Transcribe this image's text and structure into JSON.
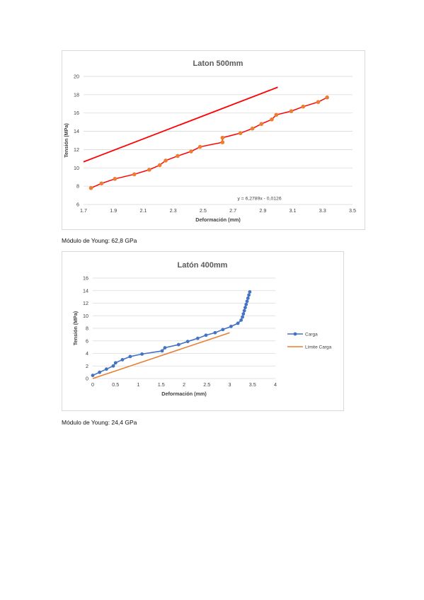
{
  "captions": {
    "chart1": "Módulo de Young: 62,8 GPa",
    "chart2": "Módulo de Young: 24,4 GPa"
  },
  "chart_data": [
    {
      "type": "scatter",
      "title": "Laton 500mm",
      "xlabel": "Deformación (mm)",
      "ylabel": "Tensión (MPa)",
      "xlim": [
        1.7,
        3.5
      ],
      "ylim": [
        6,
        20
      ],
      "xticks": [
        "1.7",
        "1.9",
        "2.1",
        "2.3",
        "2.5",
        "2.7",
        "2.9",
        "3.1",
        "3.3",
        "3.5"
      ],
      "yticks": [
        "6",
        "8",
        "10",
        "12",
        "14",
        "16",
        "18",
        "20"
      ],
      "grid": "horizontal",
      "trendline_label": "y = 6,2789x - 0,0126",
      "colors": {
        "points": "#ED7D31",
        "fit": "#FF0000",
        "grid": "#D9D9D9"
      },
      "series": [
        {
          "x": [
            1.75,
            1.82,
            1.91,
            2.04,
            2.14,
            2.21,
            2.25,
            2.33,
            2.42,
            2.48,
            2.63,
            2.63,
            2.75,
            2.83,
            2.89,
            2.96,
            2.99,
            3.09,
            3.17,
            3.27,
            3.33
          ],
          "y": [
            7.8,
            8.3,
            8.8,
            9.3,
            9.8,
            10.3,
            10.8,
            11.3,
            11.8,
            12.3,
            12.8,
            13.3,
            13.8,
            14.3,
            14.8,
            15.3,
            15.8,
            16.2,
            16.7,
            17.2,
            17.7
          ]
        }
      ],
      "fit_line": {
        "x": [
          1.7,
          3.0
        ],
        "y": [
          10.66,
          18.82
        ]
      }
    },
    {
      "type": "line",
      "title": "Latón 400mm",
      "xlabel": "Deformación (mm)",
      "ylabel": "Tensión (MPa)",
      "xlim": [
        0,
        4
      ],
      "ylim": [
        0,
        16
      ],
      "xticks": [
        "0",
        "0.5",
        "1",
        "1.5",
        "2",
        "2.5",
        "3",
        "3.5",
        "4"
      ],
      "yticks": [
        "0",
        "2",
        "4",
        "6",
        "8",
        "10",
        "12",
        "14",
        "16"
      ],
      "grid": "horizontal",
      "legend_position": "right",
      "colors": {
        "carga": "#4472C4",
        "limite": "#ED7D31",
        "grid": "#D9D9D9"
      },
      "series": [
        {
          "name": "Carga",
          "x": [
            0,
            0.15,
            0.3,
            0.45,
            0.5,
            0.65,
            0.82,
            1.08,
            1.52,
            1.58,
            1.88,
            2.08,
            2.3,
            2.48,
            2.68,
            2.85,
            3.03,
            3.18,
            3.25,
            3.28,
            3.3,
            3.32,
            3.34,
            3.36,
            3.38,
            3.4,
            3.42,
            3.44
          ],
          "y": [
            0.5,
            1.0,
            1.5,
            2.0,
            2.5,
            3.0,
            3.5,
            3.9,
            4.4,
            4.9,
            5.4,
            5.9,
            6.4,
            6.9,
            7.3,
            7.8,
            8.3,
            8.8,
            9.3,
            9.8,
            10.3,
            10.8,
            11.3,
            11.8,
            12.3,
            12.8,
            13.3,
            13.8
          ]
        },
        {
          "name": "Límite Carga",
          "x": [
            0,
            3
          ],
          "y": [
            0,
            7.3
          ]
        }
      ]
    }
  ]
}
